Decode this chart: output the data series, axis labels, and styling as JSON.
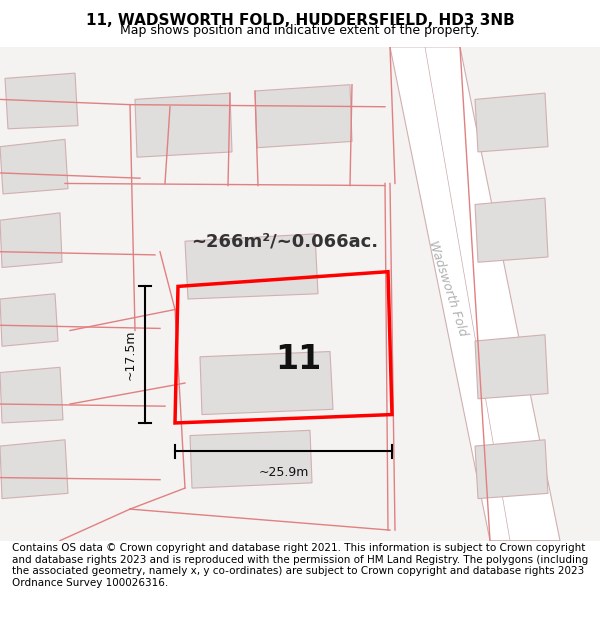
{
  "title": "11, WADSWORTH FOLD, HUDDERSFIELD, HD3 3NB",
  "subtitle": "Map shows position and indicative extent of the property.",
  "footer": "Contains OS data © Crown copyright and database right 2021. This information is subject to Crown copyright and database rights 2023 and is reproduced with the permission of HM Land Registry. The polygons (including the associated geometry, namely x, y co-ordinates) are subject to Crown copyright and database rights 2023 Ordnance Survey 100026316.",
  "map_bg": "#f5f2f2",
  "road_fill": "#ffffff",
  "building_fill": "#e0dddd",
  "building_edge": "#d0b0b0",
  "pink_line": "#e08080",
  "highlight_color": "#ff0000",
  "dim_line_color": "#111111",
  "road_label": "Wadsworth Fold",
  "area_label": "~266m²/~0.066ac.",
  "property_label": "11",
  "dim_width": "~25.9m",
  "dim_height": "~17.5m",
  "title_fontsize": 11,
  "subtitle_fontsize": 9,
  "footer_fontsize": 7.5
}
